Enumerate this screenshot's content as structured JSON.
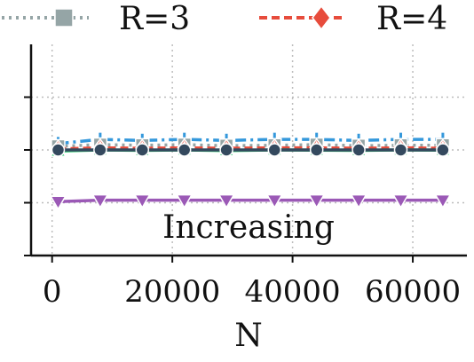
{
  "chart_data": {
    "type": "line",
    "title": "",
    "xlabel": "N",
    "ylabel": "",
    "annotation": "Increasing",
    "xlim": [
      -3500,
      69000
    ],
    "ylim": [
      0,
      1
    ],
    "xticks": [
      0,
      20000,
      40000,
      60000
    ],
    "xtick_labels": [
      "0",
      "20000",
      "40000",
      "60000"
    ],
    "yticks": [
      0.25,
      0.5,
      0.75
    ],
    "grid": true,
    "legend": {
      "placement": "top",
      "columns": 2
    },
    "series": [
      {
        "name": "R=3",
        "color": "#95a5a6",
        "linestyle": "dotted",
        "marker": "square",
        "x": [
          1000,
          8000,
          15000,
          22000,
          29000,
          37000,
          44000,
          51000,
          58000,
          65000
        ],
        "y": [
          0.517,
          0.525,
          0.522,
          0.525,
          0.52,
          0.522,
          0.525,
          0.52,
          0.522,
          0.522
        ]
      },
      {
        "name": "R=4",
        "color": "#e74c3c",
        "linestyle": "dashed",
        "marker": "diamond",
        "x": [
          1000,
          8000,
          15000,
          22000,
          29000,
          37000,
          44000,
          51000,
          58000,
          65000
        ],
        "y": [
          0.505,
          0.51,
          0.508,
          0.51,
          0.508,
          0.51,
          0.51,
          0.508,
          0.51,
          0.508
        ]
      },
      {
        "name": "",
        "color": "#3498db",
        "linestyle": "dashdot",
        "marker": "plus",
        "x": [
          1000,
          8000,
          15000,
          22000,
          29000,
          37000,
          44000,
          51000,
          58000,
          65000
        ],
        "y": [
          0.53,
          0.55,
          0.545,
          0.55,
          0.545,
          0.55,
          0.55,
          0.545,
          0.55,
          0.55
        ]
      },
      {
        "name": "",
        "color": "#34495e",
        "linestyle": "solid",
        "marker": "circle",
        "x": [
          1000,
          8000,
          15000,
          22000,
          29000,
          37000,
          44000,
          51000,
          58000,
          65000
        ],
        "y": [
          0.5,
          0.5,
          0.5,
          0.5,
          0.5,
          0.5,
          0.5,
          0.5,
          0.5,
          0.5
        ]
      },
      {
        "name": "",
        "color": "#2ecc71",
        "linestyle": "solid",
        "marker": "triangle-up",
        "x": [
          1000,
          8000,
          15000,
          22000,
          29000,
          37000,
          44000,
          51000,
          58000,
          65000
        ],
        "y": [
          0.495,
          0.5,
          0.498,
          0.5,
          0.497,
          0.5,
          0.499,
          0.498,
          0.5,
          0.499
        ]
      },
      {
        "name": "",
        "color": "#9b59b6",
        "linestyle": "solid",
        "marker": "triangle-down",
        "x": [
          1000,
          8000,
          15000,
          22000,
          29000,
          37000,
          44000,
          51000,
          58000,
          65000
        ],
        "y": [
          0.255,
          0.262,
          0.262,
          0.262,
          0.262,
          0.262,
          0.262,
          0.262,
          0.262,
          0.262
        ]
      }
    ]
  }
}
